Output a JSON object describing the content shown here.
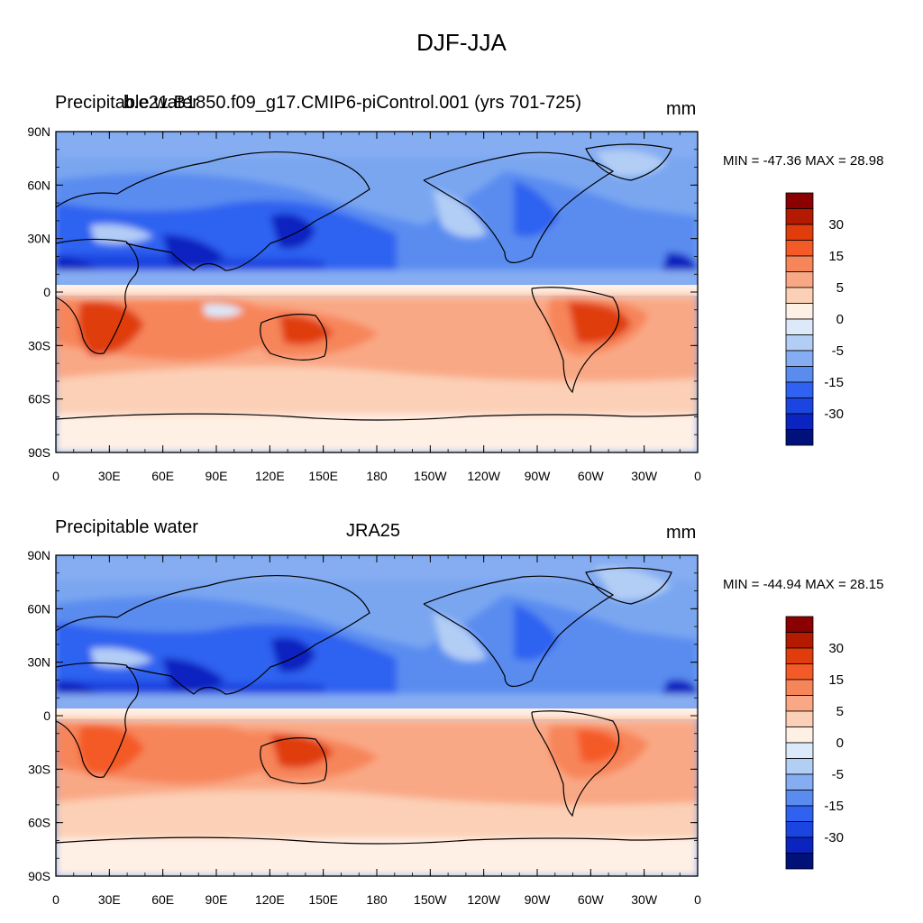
{
  "main_title": "DJF-JJA",
  "panels": [
    {
      "left_title": "Precipitable water",
      "center_title": "b.e21.B1850.f09_g17.CMIP6-piControl.001 (yrs 701-725)",
      "units": "mm",
      "minmax": "MIN = -47.36 MAX =  28.98"
    },
    {
      "left_title": "Precipitable water",
      "center_title": "JRA25",
      "units": "mm",
      "minmax": "MIN = -44.94 MAX =  28.15"
    }
  ],
  "x_ticks": [
    "0",
    "30E",
    "60E",
    "90E",
    "120E",
    "150E",
    "180",
    "150W",
    "120W",
    "90W",
    "60W",
    "30W",
    "0"
  ],
  "y_ticks": [
    "90N",
    "60N",
    "30N",
    "0",
    "30S",
    "60S",
    "90S"
  ],
  "colorbar": {
    "colors": [
      "#8b0000",
      "#b31a00",
      "#e03c0c",
      "#f45a28",
      "#f7855a",
      "#f9a885",
      "#fcd0b6",
      "#fff0e6",
      "#dbe9f9",
      "#b3cef5",
      "#86adf2",
      "#5a8cf0",
      "#2f62f0",
      "#1a45e0",
      "#0b24c0",
      "#00127a"
    ],
    "labels": [
      "30",
      "15",
      "5",
      "0",
      "-5",
      "-15",
      "-30"
    ]
  },
  "map_colors": {
    "ocean_base": "#7aa6f0",
    "deep_blue": "#0b24c0",
    "mid_blue": "#2f62f0",
    "light_blue": "#b3cef5",
    "pale": "#fff0e6",
    "light_orange": "#fcd0b6",
    "orange": "#f9a885",
    "deep_orange": "#f45a28",
    "red": "#e03c0c"
  }
}
